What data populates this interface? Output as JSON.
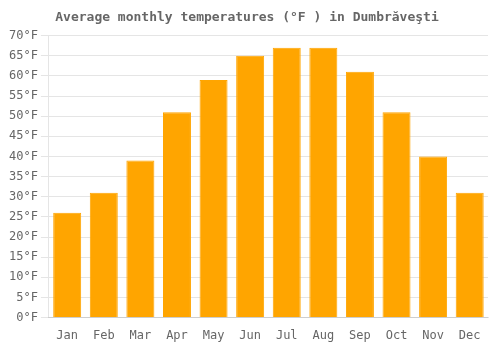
{
  "chart_data": {
    "type": "bar",
    "title": "Average monthly temperatures (°F ) in Dumbrăveşti",
    "categories": [
      "Jan",
      "Feb",
      "Mar",
      "Apr",
      "May",
      "Jun",
      "Jul",
      "Aug",
      "Sep",
      "Oct",
      "Nov",
      "Dec"
    ],
    "values": [
      26,
      31,
      39,
      51,
      59,
      65,
      67,
      67,
      61,
      51,
      40,
      31
    ],
    "color": "#FFA500",
    "ylim": [
      0,
      70
    ],
    "yticks": [
      {
        "value": 0,
        "label": "0°F"
      },
      {
        "value": 5,
        "label": "5°F"
      },
      {
        "value": 10,
        "label": "10°F"
      },
      {
        "value": 15,
        "label": "15°F"
      },
      {
        "value": 20,
        "label": "20°F"
      },
      {
        "value": 25,
        "label": "25°F"
      },
      {
        "value": 30,
        "label": "30°F"
      },
      {
        "value": 35,
        "label": "35°F"
      },
      {
        "value": 40,
        "label": "40°F"
      },
      {
        "value": 45,
        "label": "45°F"
      },
      {
        "value": 50,
        "label": "50°F"
      },
      {
        "value": 55,
        "label": "55°F"
      },
      {
        "value": 60,
        "label": "60°F"
      },
      {
        "value": 65,
        "label": "65°F"
      },
      {
        "value": 70,
        "label": "70°F"
      }
    ],
    "grid": true
  }
}
